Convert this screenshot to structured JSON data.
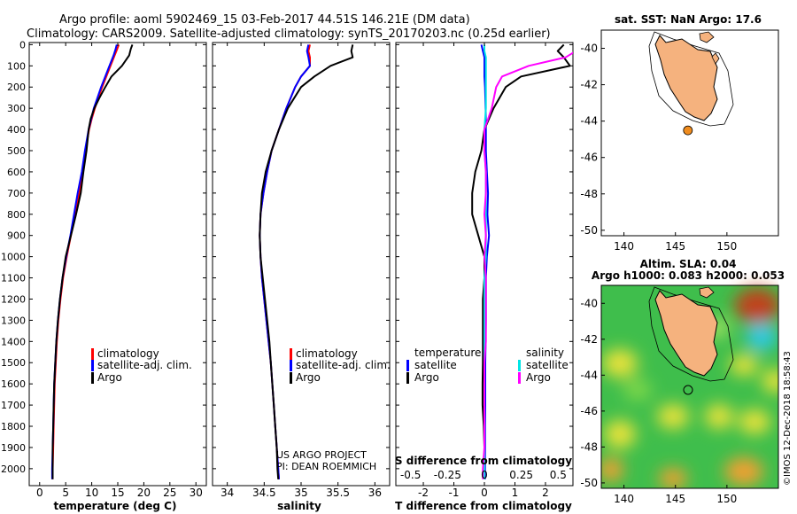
{
  "header": {
    "line1": "Argo profile: aoml 5902469_15 03-Feb-2017 44.51S 146.21E (DM data)",
    "line2": "Climatology: CARS2009. Satellite-adjusted climatology: synTS_20170203.nc (0.25d earlier)"
  },
  "colors": {
    "climatology": "#ff0000",
    "satellite": "#0000ff",
    "argo": "#000000",
    "sat_S": "#00e5e5",
    "argo_S": "#ff00ff",
    "land": "#f5b27e",
    "dot": "#f08c1e"
  },
  "depth_axis": {
    "ticks": [
      "0",
      "100",
      "200",
      "300",
      "400",
      "500",
      "600",
      "700",
      "800",
      "900",
      "1000",
      "1100",
      "1200",
      "1300",
      "1400",
      "1500",
      "1600",
      "1700",
      "1800",
      "1900",
      "2000"
    ]
  },
  "chart_data": [
    {
      "type": "line",
      "name": "temperature",
      "xlabel": "temperature (deg C)",
      "xlim": [
        -2,
        32
      ],
      "ylim": [
        2080,
        -10
      ],
      "xticks": [
        "0",
        "5",
        "10",
        "15",
        "20",
        "25",
        "30"
      ],
      "xtick_values": [
        0,
        5,
        10,
        15,
        20,
        25,
        30
      ],
      "legend": [
        "climatology",
        "satellite-adj. clim.",
        "Argo"
      ],
      "depth": [
        0,
        20,
        50,
        100,
        150,
        200,
        250,
        300,
        350,
        400,
        500,
        600,
        700,
        800,
        900,
        1000,
        1100,
        1200,
        1300,
        1400,
        1500,
        1600,
        1700,
        1800,
        1900,
        2000,
        2050
      ],
      "series": [
        {
          "name": "climatology",
          "values": [
            15.2,
            14.9,
            14.4,
            13.6,
            12.8,
            12.0,
            11.3,
            10.6,
            10.0,
            9.5,
            8.8,
            8.3,
            7.6,
            6.8,
            6.0,
            5.2,
            4.5,
            4.0,
            3.6,
            3.3,
            3.1,
            2.9,
            2.8,
            2.7,
            2.6,
            2.5,
            2.5
          ]
        },
        {
          "name": "satellite-adj. clim.",
          "values": [
            14.8,
            14.6,
            14.2,
            13.4,
            12.6,
            11.8,
            11.1,
            10.4,
            9.9,
            9.4,
            8.7,
            8.1,
            7.3,
            6.6,
            5.9,
            5.1,
            4.4,
            3.9,
            3.5,
            3.2,
            3.0,
            2.8,
            2.7,
            2.6,
            2.5,
            2.4,
            2.4
          ]
        },
        {
          "name": "Argo",
          "values": [
            17.8,
            17.5,
            17.2,
            15.8,
            13.8,
            12.6,
            11.5,
            10.5,
            9.8,
            9.4,
            9.0,
            8.4,
            7.9,
            7.0,
            6.0,
            5.0,
            4.4,
            3.9,
            3.5,
            3.2,
            3.0,
            2.8,
            2.7,
            2.6,
            2.5,
            2.5,
            2.5
          ]
        }
      ]
    },
    {
      "type": "line",
      "name": "salinity",
      "xlabel": "salinity",
      "xlim": [
        33.8,
        36.2
      ],
      "ylim": [
        2080,
        -10
      ],
      "xticks": [
        "34",
        "34.5",
        "35",
        "35.5",
        "36"
      ],
      "xtick_values": [
        34,
        34.5,
        35,
        35.5,
        36
      ],
      "legend": [
        "climatology",
        "satellite-adj. clim.",
        "Argo"
      ],
      "annotation": [
        "US ARGO PROJECT",
        "PI: DEAN ROEMMICH"
      ],
      "depth": [
        0,
        30,
        60,
        100,
        150,
        200,
        300,
        400,
        500,
        600,
        700,
        800,
        900,
        1000,
        1100,
        1200,
        1300,
        1400,
        1500,
        1600,
        1700,
        1800,
        1900,
        2000,
        2050
      ],
      "series": [
        {
          "name": "climatology",
          "values": [
            35.12,
            35.1,
            35.12,
            35.12,
            35.0,
            34.92,
            34.8,
            34.7,
            34.6,
            34.54,
            34.49,
            34.45,
            34.44,
            34.45,
            34.47,
            34.5,
            34.53,
            34.56,
            34.59,
            34.61,
            34.63,
            34.65,
            34.67,
            34.69,
            34.7
          ]
        },
        {
          "name": "satellite-adj. clim.",
          "values": [
            35.1,
            35.08,
            35.1,
            35.12,
            35.0,
            34.92,
            34.8,
            34.7,
            34.6,
            34.54,
            34.49,
            34.45,
            34.44,
            34.45,
            34.47,
            34.5,
            34.53,
            34.56,
            34.59,
            34.61,
            34.63,
            34.65,
            34.67,
            34.69,
            34.7
          ]
        },
        {
          "name": "Argo",
          "values": [
            35.7,
            35.68,
            35.7,
            35.4,
            35.18,
            35.0,
            34.82,
            34.7,
            34.6,
            34.52,
            34.47,
            34.45,
            34.44,
            34.45,
            34.48,
            34.51,
            34.54,
            34.57,
            34.59,
            34.61,
            34.63,
            34.65,
            34.67,
            34.68,
            34.69
          ]
        }
      ]
    },
    {
      "type": "line",
      "name": "difference",
      "xlabel": "T difference from climatology",
      "xlabel2": "S difference from climatology",
      "xlim": [
        -2.9,
        2.9
      ],
      "ylim": [
        2080,
        -10
      ],
      "xticks": [
        "-2",
        "-1",
        "0",
        "1",
        "2"
      ],
      "xtick_values": [
        -2,
        -1,
        0,
        1,
        2
      ],
      "xticks_S": [
        "-0.5",
        "-0.25",
        "0",
        "0.25",
        "0.5"
      ],
      "xtick_values_S": [
        -0.5,
        -0.25,
        0,
        0.25,
        0.5
      ],
      "legend_T": [
        "temperature",
        "satellite",
        "Argo"
      ],
      "legend_S": [
        "salinity",
        "satellite",
        "Argo"
      ],
      "depth": [
        0,
        30,
        60,
        100,
        150,
        200,
        300,
        400,
        500,
        600,
        700,
        800,
        900,
        1000,
        1100,
        1200,
        1300,
        1400,
        1500,
        1600,
        1700,
        1800,
        1900,
        2000,
        2050
      ],
      "series": [
        {
          "name": "T satellite",
          "values": [
            -0.1,
            -0.05,
            0.0,
            0.0,
            0.0,
            0.02,
            0.04,
            0.05,
            0.05,
            0.08,
            0.12,
            0.1,
            0.15,
            0.08,
            0.05,
            0.05,
            0.05,
            0.04,
            0.03,
            0.03,
            0.03,
            0.02,
            0.02,
            0.02,
            0.02
          ]
        },
        {
          "name": "T Argo",
          "values": [
            2.6,
            2.4,
            2.6,
            2.8,
            1.2,
            0.7,
            0.3,
            0.0,
            -0.1,
            -0.3,
            -0.4,
            -0.4,
            -0.2,
            0.0,
            0.0,
            -0.05,
            -0.05,
            -0.05,
            -0.05,
            -0.06,
            -0.06,
            -0.02,
            0.0,
            0.0,
            0.0
          ]
        },
        {
          "name": "S satellite",
          "values": [
            0.0,
            0.0,
            0.01,
            0.01,
            0.01,
            0.01,
            0.01,
            0.0,
            0.0,
            0.01,
            0.01,
            0.01,
            0.01,
            0.01,
            0.0,
            0.0,
            0.0,
            0.0,
            0.0,
            0.0,
            0.0,
            0.0,
            0.0,
            0.0,
            0.0
          ]
        },
        {
          "name": "S Argo",
          "values": [
            0.62,
            0.62,
            0.55,
            0.3,
            0.12,
            0.08,
            0.05,
            0.0,
            0.0,
            0.01,
            0.01,
            0.0,
            0.01,
            0.0,
            0.01,
            0.01,
            0.01,
            0.01,
            0.0,
            0.0,
            0.0,
            0.0,
            0.0,
            -0.01,
            -0.01
          ]
        }
      ]
    }
  ],
  "map_sst": {
    "title": "sat. SST: NaN Argo: 17.6",
    "lat_ticks": [
      "-40",
      "-42",
      "-44",
      "-46",
      "-48",
      "-50"
    ],
    "lon_ticks": [
      "140",
      "145",
      "150"
    ],
    "argo_lon": 146.21,
    "argo_lat": -44.51
  },
  "map_sla": {
    "title1": "Altim. SLA: 0.04",
    "title2": "Argo h1000: 0.083 h2000: 0.053",
    "lat_ticks": [
      "-40",
      "-42",
      "-44",
      "-46",
      "-48",
      "-50"
    ],
    "lon_ticks": [
      "140",
      "145",
      "150"
    ],
    "credit": "©IMOS 12-Dec-2018 18:58:43"
  }
}
